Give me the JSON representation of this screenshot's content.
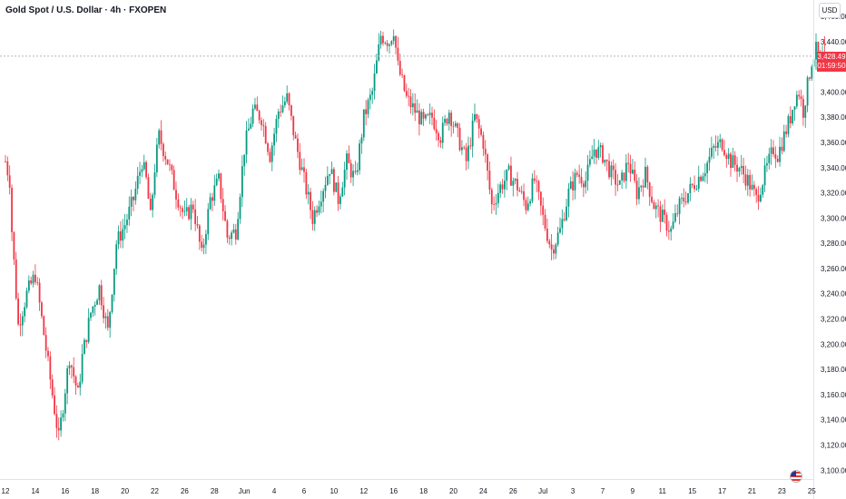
{
  "header": {
    "symbol_title": "Gold Spot / U.S. Dollar · 4h · FXOPEN",
    "currency": "USD"
  },
  "price_badge": {
    "price": "3,428.49",
    "countdown": "01:59:50"
  },
  "colors": {
    "up": "#089981",
    "down": "#f23645",
    "background": "#ffffff",
    "grid": "#f0f3fa",
    "text": "#131722"
  },
  "chart_data": {
    "type": "candlestick",
    "title": "Gold Spot / U.S. Dollar · 4h · FXOPEN",
    "interval": "4h",
    "currency": "USD",
    "last_price": 3428.49,
    "y_ticks": [
      "3,100.00",
      "3,120.00",
      "3,140.00",
      "3,160.00",
      "3,180.00",
      "3,200.00",
      "3,220.00",
      "3,240.00",
      "3,260.00",
      "3,280.00",
      "3,300.00",
      "3,320.00",
      "3,340.00",
      "3,360.00",
      "3,380.00",
      "3,400.00",
      "3,420.00",
      "3,440.00",
      "3,460.00"
    ],
    "y_tick_values": [
      3100,
      3120,
      3140,
      3160,
      3180,
      3200,
      3220,
      3240,
      3260,
      3280,
      3300,
      3320,
      3340,
      3360,
      3380,
      3400,
      3420,
      3440,
      3460
    ],
    "ylim": [
      3093,
      3473
    ],
    "x_ticks": [
      "12",
      "14",
      "16",
      "18",
      "20",
      "22",
      "26",
      "28",
      "Jun",
      "4",
      "6",
      "10",
      "12",
      "16",
      "18",
      "20",
      "24",
      "26",
      "Jul",
      "3",
      "7",
      "9",
      "11",
      "15",
      "17",
      "21",
      "23",
      "25"
    ],
    "x_tick_index": [
      0,
      14,
      28,
      42,
      56,
      70,
      84,
      98,
      112,
      126,
      140,
      154,
      168,
      182,
      196,
      210,
      224,
      238,
      252,
      266,
      280,
      294,
      308,
      322,
      336,
      350,
      364,
      378
    ],
    "grid": false,
    "anchors": [
      [
        0,
        3345
      ],
      [
        2,
        3330
      ],
      [
        3,
        3290
      ],
      [
        6,
        3215
      ],
      [
        10,
        3240
      ],
      [
        14,
        3255
      ],
      [
        17,
        3220
      ],
      [
        22,
        3160
      ],
      [
        25,
        3125
      ],
      [
        28,
        3165
      ],
      [
        30,
        3190
      ],
      [
        34,
        3160
      ],
      [
        36,
        3190
      ],
      [
        40,
        3225
      ],
      [
        44,
        3245
      ],
      [
        48,
        3210
      ],
      [
        52,
        3280
      ],
      [
        56,
        3295
      ],
      [
        60,
        3315
      ],
      [
        64,
        3345
      ],
      [
        66,
        3330
      ],
      [
        68,
        3300
      ],
      [
        70,
        3340
      ],
      [
        72,
        3365
      ],
      [
        76,
        3345
      ],
      [
        80,
        3320
      ],
      [
        84,
        3300
      ],
      [
        88,
        3310
      ],
      [
        92,
        3270
      ],
      [
        96,
        3315
      ],
      [
        100,
        3330
      ],
      [
        104,
        3285
      ],
      [
        108,
        3290
      ],
      [
        112,
        3355
      ],
      [
        116,
        3385
      ],
      [
        120,
        3380
      ],
      [
        124,
        3350
      ],
      [
        128,
        3385
      ],
      [
        132,
        3395
      ],
      [
        136,
        3360
      ],
      [
        140,
        3330
      ],
      [
        144,
        3300
      ],
      [
        148,
        3320
      ],
      [
        152,
        3340
      ],
      [
        156,
        3315
      ],
      [
        160,
        3345
      ],
      [
        164,
        3330
      ],
      [
        168,
        3380
      ],
      [
        172,
        3400
      ],
      [
        176,
        3445
      ],
      [
        180,
        3440
      ],
      [
        182,
        3450
      ],
      [
        184,
        3420
      ],
      [
        188,
        3395
      ],
      [
        192,
        3385
      ],
      [
        196,
        3375
      ],
      [
        200,
        3380
      ],
      [
        204,
        3365
      ],
      [
        208,
        3385
      ],
      [
        212,
        3365
      ],
      [
        216,
        3345
      ],
      [
        220,
        3380
      ],
      [
        224,
        3360
      ],
      [
        228,
        3310
      ],
      [
        232,
        3325
      ],
      [
        236,
        3335
      ],
      [
        240,
        3325
      ],
      [
        244,
        3310
      ],
      [
        248,
        3330
      ],
      [
        252,
        3300
      ],
      [
        256,
        3275
      ],
      [
        260,
        3290
      ],
      [
        264,
        3320
      ],
      [
        268,
        3335
      ],
      [
        272,
        3330
      ],
      [
        276,
        3355
      ],
      [
        280,
        3350
      ],
      [
        284,
        3335
      ],
      [
        288,
        3325
      ],
      [
        292,
        3345
      ],
      [
        296,
        3320
      ],
      [
        300,
        3335
      ],
      [
        304,
        3310
      ],
      [
        308,
        3300
      ],
      [
        312,
        3290
      ],
      [
        316,
        3310
      ],
      [
        320,
        3320
      ],
      [
        324,
        3330
      ],
      [
        328,
        3340
      ],
      [
        332,
        3355
      ],
      [
        336,
        3360
      ],
      [
        340,
        3345
      ],
      [
        344,
        3340
      ],
      [
        348,
        3330
      ],
      [
        352,
        3315
      ],
      [
        356,
        3335
      ],
      [
        360,
        3355
      ],
      [
        362,
        3350
      ],
      [
        364,
        3360
      ],
      [
        368,
        3380
      ],
      [
        370,
        3395
      ],
      [
        372,
        3400
      ],
      [
        374,
        3385
      ],
      [
        378,
        3425
      ],
      [
        380,
        3433
      ],
      [
        382,
        3425
      ],
      [
        384,
        3430
      ]
    ],
    "candles": []
  }
}
